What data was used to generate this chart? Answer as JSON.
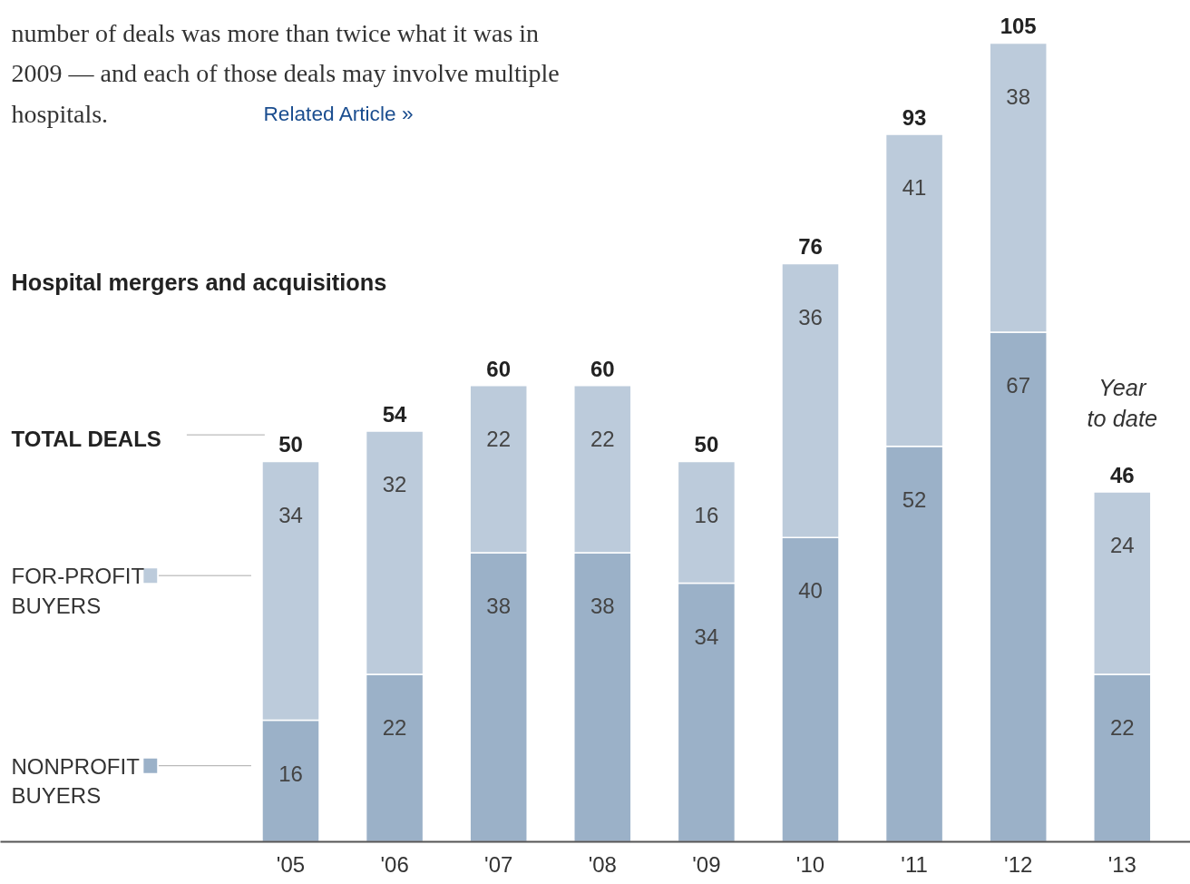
{
  "chart_data": {
    "type": "bar",
    "stacked": true,
    "title": "Hospital mergers and acquisitions",
    "categories": [
      "'05",
      "'06",
      "'07",
      "'08",
      "'09",
      "'10",
      "'11",
      "'12",
      "'13"
    ],
    "series": [
      {
        "name": "NONPROFIT BUYERS",
        "color": "#9bb1c8",
        "values": [
          16,
          22,
          38,
          38,
          34,
          40,
          52,
          67,
          22
        ]
      },
      {
        "name": "FOR-PROFIT BUYERS",
        "color": "#bccbdb",
        "values": [
          34,
          32,
          22,
          22,
          16,
          36,
          41,
          38,
          24
        ]
      }
    ],
    "totals": [
      "50",
      "54",
      "60",
      "60",
      "50",
      "76",
      "93",
      "105",
      "46"
    ],
    "data_labels": true,
    "legend": "left",
    "annotations": [
      "number of deals was more than twice what it was in 2009 — and each of those deals may involve multiple hospitals.",
      "Related Article »",
      "TOTAL DEALS",
      "Year to date"
    ]
  }
}
